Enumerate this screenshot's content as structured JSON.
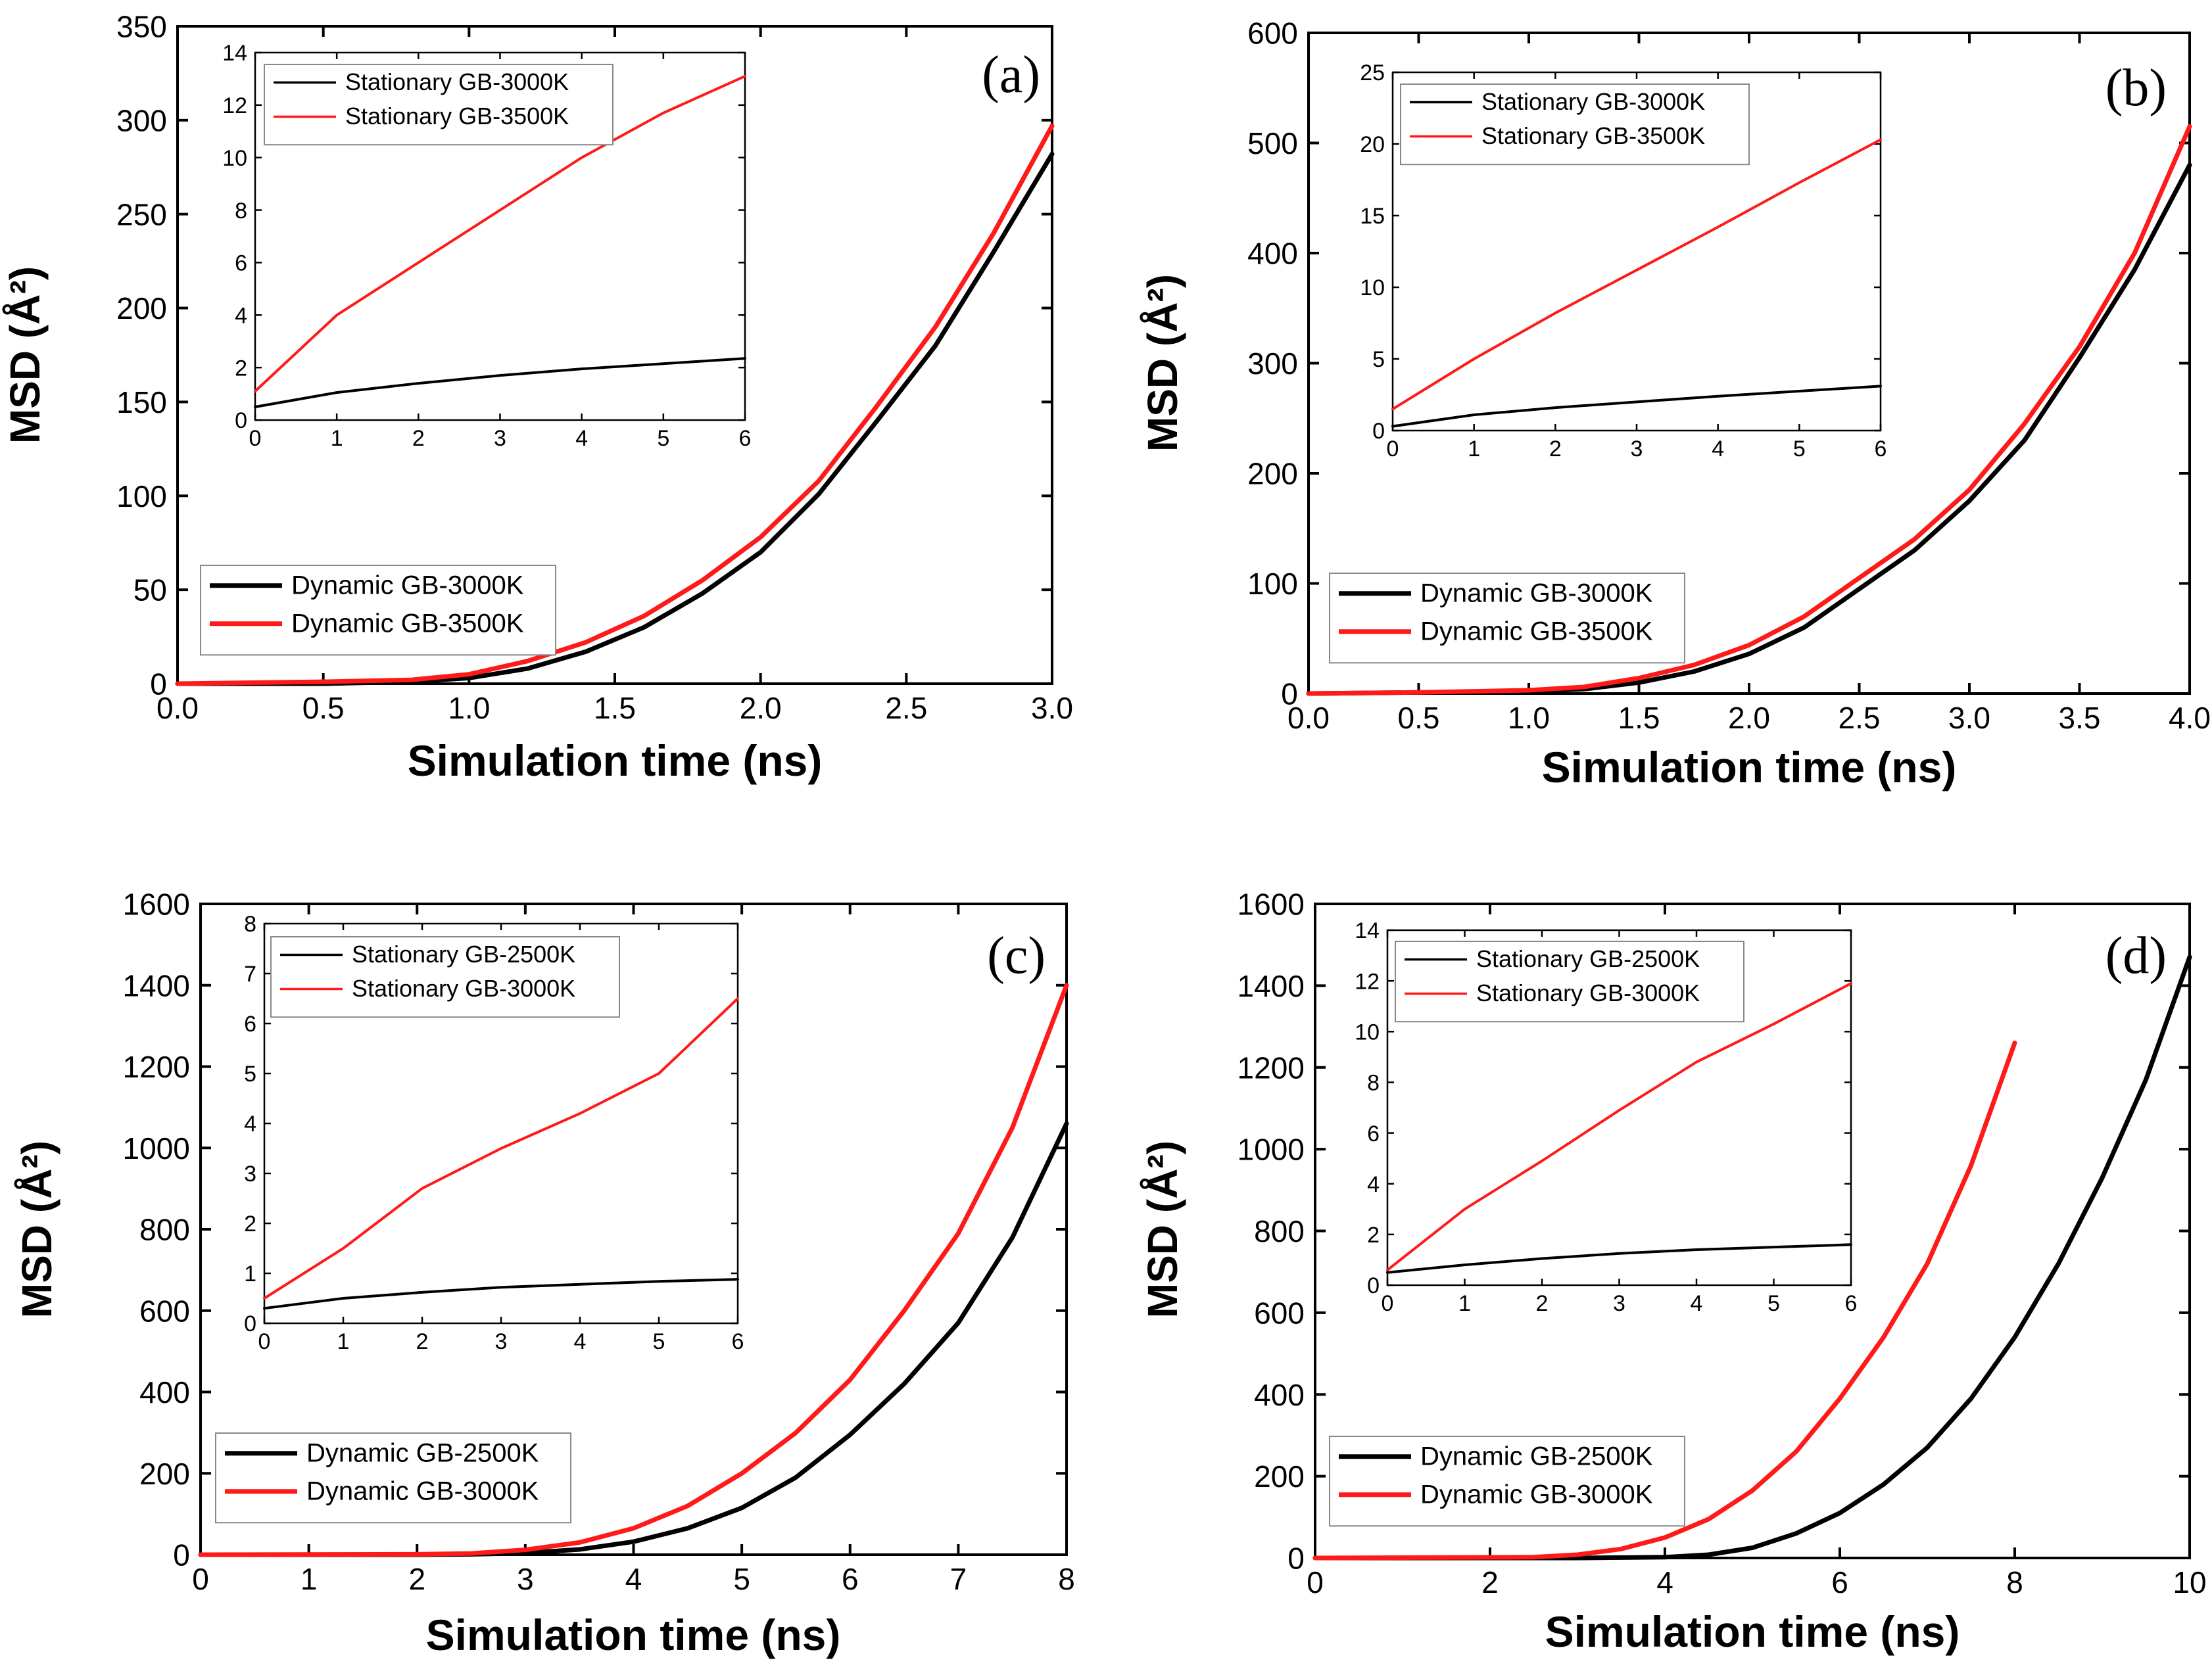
{
  "colors": {
    "black_series": "#000000",
    "red_series": "#ff1a1a",
    "axis": "#000000",
    "background": "#ffffff"
  },
  "chart_data": [
    {
      "type": "line",
      "panel_label": "(a)",
      "xlabel": "Simulation time (ns)",
      "ylabel": "MSD (Å²)",
      "xlim": [
        0,
        3.0
      ],
      "ylim": [
        0,
        350
      ],
      "xticks": [
        0.0,
        0.5,
        1.0,
        1.5,
        2.0,
        2.5,
        3.0
      ],
      "xtick_labels": [
        "0.0",
        "0.5",
        "1.0",
        "1.5",
        "2.0",
        "2.5",
        "3.0"
      ],
      "yticks": [
        0,
        50,
        100,
        150,
        200,
        250,
        300,
        350
      ],
      "ytick_labels": [
        "0",
        "50",
        "100",
        "150",
        "200",
        "250",
        "300",
        "350"
      ],
      "legend_position": "bottom-left",
      "series": [
        {
          "name": "Dynamic GB-3000K",
          "color": "#000000",
          "x": [
            0,
            0.5,
            0.8,
            1.0,
            1.2,
            1.4,
            1.6,
            1.8,
            2.0,
            2.2,
            2.4,
            2.6,
            2.8,
            3.0
          ],
          "y": [
            0,
            0,
            1,
            3,
            8,
            17,
            30,
            48,
            70,
            101,
            140,
            180,
            230,
            282
          ]
        },
        {
          "name": "Dynamic GB-3500K",
          "color": "#ff1a1a",
          "x": [
            0,
            0.5,
            0.8,
            1.0,
            1.2,
            1.4,
            1.6,
            1.8,
            2.0,
            2.2,
            2.4,
            2.6,
            2.8,
            3.0
          ],
          "y": [
            0,
            1,
            2,
            5,
            12,
            22,
            36,
            55,
            78,
            108,
            148,
            190,
            240,
            297
          ]
        }
      ],
      "inset": {
        "xlim": [
          0,
          6
        ],
        "ylim": [
          0,
          14
        ],
        "xticks": [
          0,
          1,
          2,
          3,
          4,
          5,
          6
        ],
        "xtick_labels": [
          "0",
          "1",
          "2",
          "3",
          "4",
          "5",
          "6"
        ],
        "yticks": [
          0,
          2,
          4,
          6,
          8,
          10,
          12,
          14
        ],
        "ytick_labels": [
          "0",
          "2",
          "4",
          "6",
          "8",
          "10",
          "12",
          "14"
        ],
        "legend_position": "top-left",
        "series": [
          {
            "name": "Stationary GB-3000K",
            "color": "#000000",
            "x": [
              0,
              1,
              2,
              3,
              4,
              5,
              6
            ],
            "y": [
              0.5,
              1.05,
              1.4,
              1.7,
              1.95,
              2.15,
              2.35
            ]
          },
          {
            "name": "Stationary GB-3500K",
            "color": "#ff1a1a",
            "x": [
              0,
              1,
              2,
              3,
              4,
              5,
              6
            ],
            "y": [
              1.1,
              4.0,
              6.0,
              8.0,
              10.0,
              11.7,
              13.1
            ]
          }
        ]
      }
    },
    {
      "type": "line",
      "panel_label": "(b)",
      "xlabel": "Simulation time (ns)",
      "ylabel": "MSD (Å²)",
      "xlim": [
        0,
        4.0
      ],
      "ylim": [
        0,
        600
      ],
      "xticks": [
        0.0,
        0.5,
        1.0,
        1.5,
        2.0,
        2.5,
        3.0,
        3.5,
        4.0
      ],
      "xtick_labels": [
        "0.0",
        "0.5",
        "1.0",
        "1.5",
        "2.0",
        "2.5",
        "3.0",
        "3.5",
        "4.0"
      ],
      "yticks": [
        0,
        100,
        200,
        300,
        400,
        500,
        600
      ],
      "ytick_labels": [
        "0",
        "100",
        "200",
        "300",
        "400",
        "500",
        "600"
      ],
      "legend_position": "bottom-left",
      "series": [
        {
          "name": "Dynamic GB-3000K",
          "color": "#000000",
          "x": [
            0,
            0.5,
            1.0,
            1.25,
            1.5,
            1.75,
            2.0,
            2.25,
            2.5,
            2.75,
            3.0,
            3.25,
            3.5,
            3.75,
            4.0
          ],
          "y": [
            0,
            1,
            2,
            4,
            10,
            20,
            36,
            60,
            95,
            130,
            175,
            230,
            305,
            385,
            480
          ]
        },
        {
          "name": "Dynamic GB-3500K",
          "color": "#ff1a1a",
          "x": [
            0,
            0.5,
            1.0,
            1.25,
            1.5,
            1.75,
            2.0,
            2.25,
            2.5,
            2.75,
            3.0,
            3.25,
            3.5,
            3.75,
            4.0
          ],
          "y": [
            0,
            1,
            3,
            6,
            14,
            26,
            44,
            70,
            105,
            140,
            185,
            245,
            315,
            400,
            515
          ]
        }
      ],
      "inset": {
        "xlim": [
          0,
          6
        ],
        "ylim": [
          0,
          25
        ],
        "xticks": [
          0,
          1,
          2,
          3,
          4,
          5,
          6
        ],
        "xtick_labels": [
          "0",
          "1",
          "2",
          "3",
          "4",
          "5",
          "6"
        ],
        "yticks": [
          0,
          5,
          10,
          15,
          20,
          25
        ],
        "ytick_labels": [
          "0",
          "5",
          "10",
          "15",
          "20",
          "25"
        ],
        "legend_position": "top-left",
        "series": [
          {
            "name": "Stationary GB-3000K",
            "color": "#000000",
            "x": [
              0,
              1,
              2,
              3,
              4,
              5,
              6
            ],
            "y": [
              0.3,
              1.1,
              1.6,
              2.0,
              2.4,
              2.75,
              3.1
            ]
          },
          {
            "name": "Stationary GB-3500K",
            "color": "#ff1a1a",
            "x": [
              0,
              1,
              2,
              3,
              4,
              5,
              6
            ],
            "y": [
              1.5,
              5.0,
              8.2,
              11.2,
              14.2,
              17.3,
              20.3
            ]
          }
        ]
      }
    },
    {
      "type": "line",
      "panel_label": "(c)",
      "xlabel": "Simulation time (ns)",
      "ylabel": "MSD (Å²)",
      "xlim": [
        0,
        8
      ],
      "ylim": [
        0,
        1600
      ],
      "xticks": [
        0,
        1,
        2,
        3,
        4,
        5,
        6,
        7,
        8
      ],
      "xtick_labels": [
        "0",
        "1",
        "2",
        "3",
        "4",
        "5",
        "6",
        "7",
        "8"
      ],
      "yticks": [
        0,
        200,
        400,
        600,
        800,
        1000,
        1200,
        1400,
        1600
      ],
      "ytick_labels": [
        "0",
        "200",
        "400",
        "600",
        "800",
        "1000",
        "1200",
        "1400",
        "1600"
      ],
      "legend_position": "bottom-left",
      "series": [
        {
          "name": "Dynamic GB-2500K",
          "color": "#000000",
          "x": [
            0,
            2,
            2.5,
            3.0,
            3.5,
            4.0,
            4.5,
            5.0,
            5.5,
            6.0,
            6.5,
            7.0,
            7.5,
            8.0
          ],
          "y": [
            0,
            0,
            1,
            4,
            13,
            32,
            65,
            115,
            190,
            295,
            420,
            570,
            780,
            1060
          ]
        },
        {
          "name": "Dynamic GB-3000K",
          "color": "#ff1a1a",
          "x": [
            0,
            2,
            2.5,
            3.0,
            3.5,
            4.0,
            4.5,
            5.0,
            5.5,
            6.0,
            6.5,
            7.0,
            7.5,
            8.0
          ],
          "y": [
            0,
            1,
            3,
            12,
            30,
            65,
            120,
            200,
            300,
            430,
            600,
            790,
            1050,
            1400
          ]
        }
      ],
      "inset": {
        "xlim": [
          0,
          6
        ],
        "ylim": [
          0,
          8
        ],
        "xticks": [
          0,
          1,
          2,
          3,
          4,
          5,
          6
        ],
        "xtick_labels": [
          "0",
          "1",
          "2",
          "3",
          "4",
          "5",
          "6"
        ],
        "yticks": [
          0,
          1,
          2,
          3,
          4,
          5,
          6,
          7,
          8
        ],
        "ytick_labels": [
          "0",
          "1",
          "2",
          "3",
          "4",
          "5",
          "6",
          "7",
          "8"
        ],
        "legend_position": "top-left",
        "series": [
          {
            "name": "Stationary GB-2500K",
            "color": "#000000",
            "x": [
              0,
              1,
              2,
              3,
              4,
              5,
              6
            ],
            "y": [
              0.3,
              0.5,
              0.62,
              0.72,
              0.78,
              0.84,
              0.88
            ]
          },
          {
            "name": "Stationary GB-3000K",
            "color": "#ff1a1a",
            "x": [
              0,
              1,
              2,
              3,
              4,
              5,
              6
            ],
            "y": [
              0.5,
              1.5,
              2.7,
              3.5,
              4.2,
              5.0,
              6.5
            ]
          }
        ]
      }
    },
    {
      "type": "line",
      "panel_label": "(d)",
      "xlabel": "Simulation time (ns)",
      "ylabel": "MSD (Å²)",
      "xlim": [
        0,
        10
      ],
      "ylim": [
        0,
        1600
      ],
      "xticks": [
        0,
        2,
        4,
        6,
        8,
        10
      ],
      "xtick_labels": [
        "0",
        "2",
        "4",
        "6",
        "8",
        "10"
      ],
      "yticks": [
        0,
        200,
        400,
        600,
        800,
        1000,
        1200,
        1400,
        1600
      ],
      "ytick_labels": [
        "0",
        "200",
        "400",
        "600",
        "800",
        "1000",
        "1200",
        "1400",
        "1600"
      ],
      "legend_position": "bottom-left",
      "series": [
        {
          "name": "Dynamic GB-2500K",
          "color": "#000000",
          "x": [
            0,
            3.0,
            4.0,
            4.5,
            5.0,
            5.5,
            6.0,
            6.5,
            7.0,
            7.5,
            8.0,
            8.5,
            9.0,
            9.5,
            10.0
          ],
          "y": [
            0,
            0,
            2,
            8,
            25,
            60,
            110,
            180,
            270,
            390,
            540,
            720,
            930,
            1170,
            1470
          ]
        },
        {
          "name": "Dynamic GB-3000K",
          "color": "#ff1a1a",
          "x": [
            0,
            2.5,
            3.0,
            3.5,
            4.0,
            4.5,
            5.0,
            5.5,
            6.0,
            6.5,
            7.0,
            7.5,
            8.0
          ],
          "y": [
            0,
            2,
            8,
            22,
            50,
            95,
            165,
            260,
            390,
            540,
            720,
            960,
            1260
          ]
        }
      ],
      "inset": {
        "xlim": [
          0,
          6
        ],
        "ylim": [
          0,
          14
        ],
        "xticks": [
          0,
          1,
          2,
          3,
          4,
          5,
          6
        ],
        "xtick_labels": [
          "0",
          "1",
          "2",
          "3",
          "4",
          "5",
          "6"
        ],
        "yticks": [
          0,
          2,
          4,
          6,
          8,
          10,
          12,
          14
        ],
        "ytick_labels": [
          "0",
          "2",
          "4",
          "6",
          "8",
          "10",
          "12",
          "14"
        ],
        "legend_position": "top-left",
        "series": [
          {
            "name": "Stationary GB-2500K",
            "color": "#000000",
            "x": [
              0,
              1,
              2,
              3,
              4,
              5,
              6
            ],
            "y": [
              0.5,
              0.8,
              1.05,
              1.25,
              1.4,
              1.5,
              1.6
            ]
          },
          {
            "name": "Stationary GB-3000K",
            "color": "#ff1a1a",
            "x": [
              0,
              1,
              2,
              3,
              4,
              5,
              6
            ],
            "y": [
              0.6,
              3.0,
              4.9,
              6.9,
              8.8,
              10.3,
              11.9
            ]
          }
        ]
      }
    }
  ]
}
